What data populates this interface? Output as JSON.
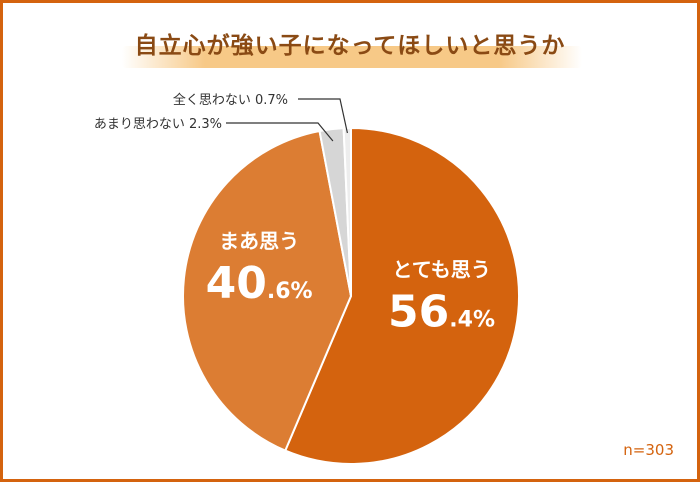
{
  "title": "自立心が強い子になってほしいと思うか",
  "sample_size": "n=303",
  "colors": {
    "frame": "#d4630e",
    "title_text": "#8a4a14",
    "title_band": "#f7c987"
  },
  "chart_data": {
    "type": "pie",
    "title": "自立心が強い子になってほしいと思うか",
    "start_angle_deg": 0,
    "direction": "clockwise",
    "slices": [
      {
        "label": "とても思う",
        "value": 56.4,
        "display": "56.4%",
        "color": "#d4630e",
        "label_inside": true
      },
      {
        "label": "まあ思う",
        "value": 40.6,
        "display": "40.6%",
        "color": "#dc7d33",
        "label_inside": true
      },
      {
        "label": "あまり思わない",
        "value": 2.3,
        "display": "2.3%",
        "color": "#d6d6d6",
        "label_inside": false
      },
      {
        "label": "全く思わない",
        "value": 0.7,
        "display": "0.7%",
        "color": "#ededed",
        "label_inside": false
      }
    ]
  }
}
